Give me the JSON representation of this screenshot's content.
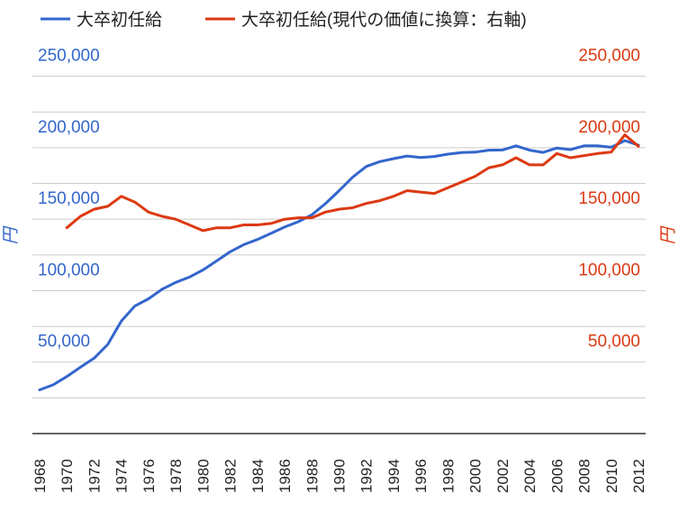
{
  "colors": {
    "series1": "#3366cc",
    "series2": "#dc3912",
    "grid": "#cccccc"
  },
  "chart_data": {
    "type": "line",
    "legend_position": "top",
    "grid": true,
    "title": "",
    "ylabel_left": "円",
    "ylabel_right": "円",
    "ylim_left": [
      0,
      275000
    ],
    "ylim_right": [
      0,
      275000
    ],
    "yticks_left": [
      "50,000",
      "100,000",
      "150,000",
      "200,000",
      "250,000"
    ],
    "yticks_right": [
      "50,000",
      "100,000",
      "150,000",
      "200,000",
      "250,000"
    ],
    "x": [
      1968,
      1969,
      1970,
      1971,
      1972,
      1973,
      1974,
      1975,
      1976,
      1977,
      1978,
      1979,
      1980,
      1981,
      1982,
      1983,
      1984,
      1985,
      1986,
      1987,
      1988,
      1989,
      1990,
      1991,
      1992,
      1993,
      1994,
      1995,
      1996,
      1997,
      1998,
      1999,
      2000,
      2001,
      2002,
      2003,
      2004,
      2005,
      2006,
      2007,
      2008,
      2009,
      2010,
      2011,
      2012
    ],
    "xticks": [
      "1968",
      "1970",
      "1972",
      "1974",
      "1976",
      "1978",
      "1980",
      "1982",
      "1984",
      "1986",
      "1988",
      "1990",
      "1992",
      "1994",
      "1996",
      "1998",
      "2000",
      "2002",
      "2004",
      "2006",
      "2008",
      "2010",
      "2012"
    ],
    "series": [
      {
        "name": "大卒初任給",
        "axis": "left",
        "values": [
          30600,
          34100,
          39900,
          46400,
          52700,
          62300,
          78700,
          89300,
          94300,
          101000,
          105800,
          109500,
          114500,
          120800,
          127200,
          132200,
          135800,
          140100,
          144500,
          148200,
          153100,
          160900,
          169900,
          179400,
          186900,
          190300,
          192400,
          194200,
          193200,
          193900,
          195500,
          196600,
          196900,
          198300,
          198400,
          201300,
          198300,
          196700,
          199800,
          198700,
          201300,
          201300,
          200300,
          205000,
          201800
        ]
      },
      {
        "name": "大卒初任給(現代の価値に換算：右軸)",
        "axis": "right",
        "values": [
          null,
          null,
          144000,
          152000,
          157000,
          159000,
          166000,
          162000,
          155000,
          152000,
          150000,
          146000,
          142000,
          144000,
          144000,
          146000,
          146000,
          147000,
          150000,
          151000,
          151000,
          155000,
          157000,
          158000,
          161000,
          163000,
          166000,
          170000,
          169000,
          168000,
          172000,
          176000,
          180000,
          186000,
          188000,
          193000,
          188000,
          188000,
          196000,
          193000,
          null,
          196000,
          197000,
          209000,
          201000
        ]
      }
    ]
  }
}
